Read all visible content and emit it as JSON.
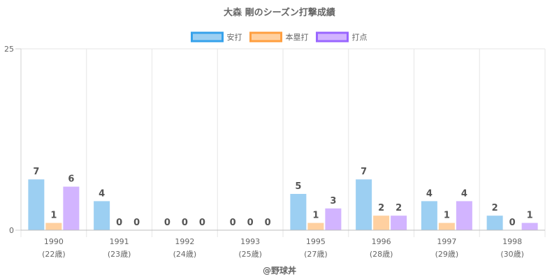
{
  "chart_data": {
    "type": "bar",
    "title": "大森 剛のシーズン打撃成績",
    "categories": [
      "1990",
      "1991",
      "1992",
      "1993",
      "1995",
      "1996",
      "1997",
      "1998"
    ],
    "category_sublabels": [
      "(22歳)",
      "(23歳)",
      "(24歳)",
      "(25歳)",
      "(27歳)",
      "(28歳)",
      "(29歳)",
      "(30歳)"
    ],
    "series": [
      {
        "name": "安打",
        "values": [
          7,
          4,
          0,
          0,
          5,
          7,
          4,
          2
        ],
        "fill": "#9ccff2",
        "border": "#36a2eb"
      },
      {
        "name": "本塁打",
        "values": [
          1,
          0,
          0,
          0,
          1,
          2,
          1,
          0
        ],
        "fill": "#ffd0a0",
        "border": "#ff9f40"
      },
      {
        "name": "打点",
        "values": [
          6,
          0,
          0,
          0,
          3,
          2,
          4,
          1
        ],
        "fill": "#d2b4ff",
        "border": "#9966ff"
      }
    ],
    "ylim": [
      0,
      25
    ],
    "yticks": [
      "0",
      "25"
    ],
    "legend_position": "top",
    "grid": true,
    "xlabel": "",
    "ylabel": "",
    "footer": "@野球丼"
  }
}
